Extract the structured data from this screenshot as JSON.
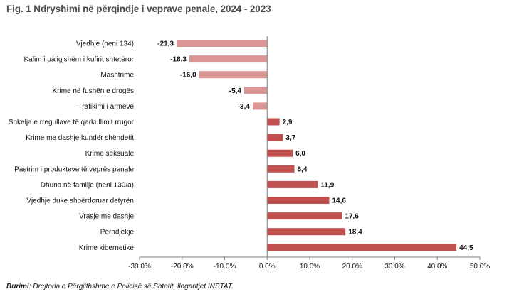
{
  "title": "Fig. 1 Ndryshimi në përqindje i veprave penale, 2024 - 2023",
  "source": {
    "label": "Burimi",
    "text": ": Drejtoria e Përgjithshme e Policisë së Shtetit, llogaritjet INSTAT."
  },
  "chart_data": {
    "type": "bar",
    "orientation": "horizontal",
    "title": "Fig. 1 Ndryshimi në përqindje i veprave penale, 2024 - 2023",
    "categories": [
      "Vjedhje (neni 134)",
      "Kalim i paligjshëm i kufirit shtetëror",
      "Mashtrime",
      "Krime në fushën e drogës",
      "Trafikimi i armëve",
      "Shkelja e rregullave të qarkullimit rrugor",
      "Krime me dashje kundër shëndetit",
      "Krime seksuale",
      "Pastrim i produkteve të veprës penale",
      "Dhuna në familje (neni 130/a)",
      "Vjedhje duke shpërdoruar detyrën",
      "Vrasje me dashje",
      "Përndjekje",
      "Krime kibernetike"
    ],
    "values": [
      -21.3,
      -18.3,
      -16.0,
      -5.4,
      -3.4,
      2.9,
      3.7,
      6.0,
      6.4,
      11.9,
      14.6,
      17.6,
      18.4,
      44.5
    ],
    "value_labels": [
      "-21,3",
      "-18,3",
      "-16,0",
      "-5,4",
      "-3,4",
      "2,9",
      "3,7",
      "6,0",
      "6,4",
      "11,9",
      "14,6",
      "17,6",
      "18,4",
      "44,5"
    ],
    "xlim": [
      -30,
      50
    ],
    "xticks": [
      -30,
      -20,
      -10,
      0,
      10,
      20,
      30,
      40,
      50
    ],
    "xtick_labels": [
      "-30.0%",
      "-20.0%",
      "-10.0%",
      "0.0%",
      "10.0%",
      "20.0%",
      "30.0%",
      "40.0%",
      "50.0%"
    ],
    "grid": false,
    "colors": {
      "negative": "#d99694",
      "positive": "#c0504d",
      "axis": "#7f7f7f",
      "title": "#4a4a4a"
    }
  }
}
